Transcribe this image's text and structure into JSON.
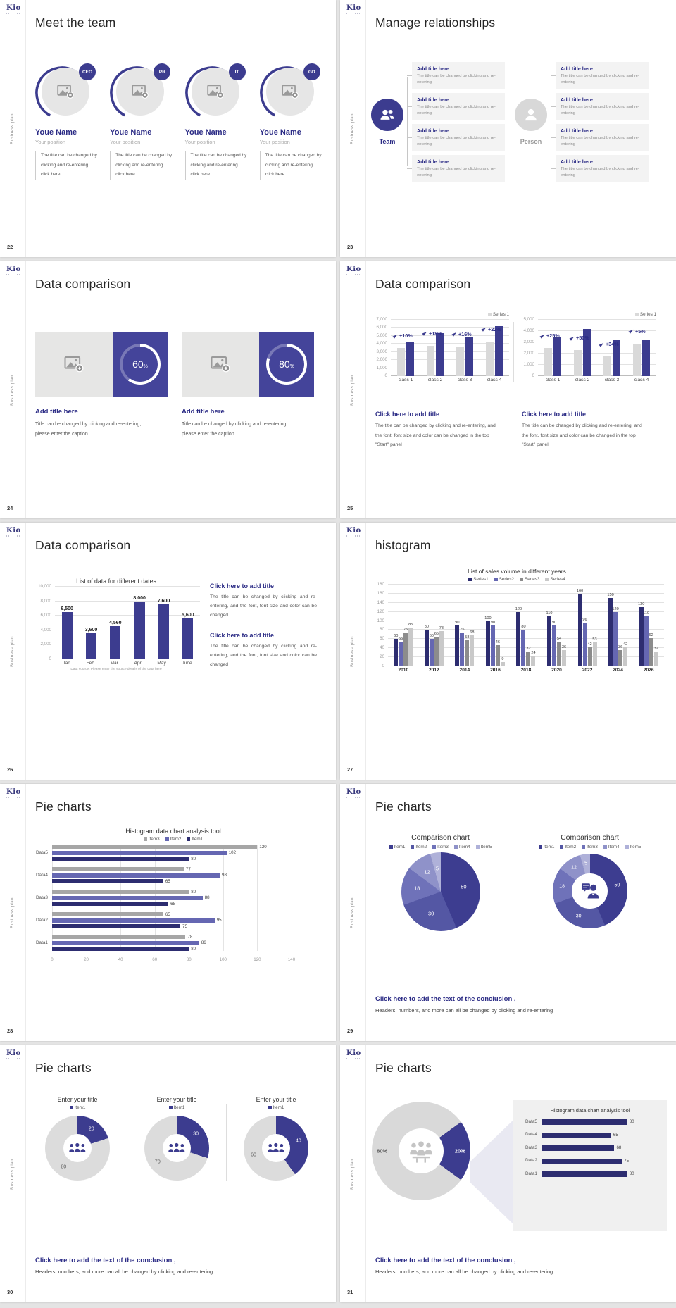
{
  "common": {
    "logo": "Kio",
    "side_label": "Business plan",
    "add_title": "Add title here",
    "relation_box_body": "The title can be changed by clicking and re-entering",
    "click_add_title": "Click here to add title",
    "conclusion_title": "Click here to add the text of the conclusion ,",
    "conclusion_body": "Headers, numbers, and more can all be changed by clicking and re-entering"
  },
  "colors": {
    "primary": "#3C3C8F",
    "navy": "#2D2D70",
    "mid_purple": "#6567B2",
    "gray_bar": "#D9D9D9",
    "gray_mid": "#A6A6A6",
    "dark_gray": "#8C8C8C",
    "light_gray": "#C9C9C9",
    "heading": "#2B2B8A"
  },
  "slides": {
    "s22": {
      "page": "22",
      "title": "Meet the team",
      "roles": [
        "CEO",
        "PR",
        "IT",
        "GD"
      ],
      "member_name": "Youe Name",
      "member_position": "Your position",
      "member_desc": "The title can be changed by clicking and re-entering click here"
    },
    "s23": {
      "page": "23",
      "title": "Manage relationships",
      "team_label": "Team",
      "person_label": "Person",
      "boxes_per_side": 4
    },
    "s24": {
      "page": "24",
      "title": "Data comparison",
      "percents": [
        "60",
        "80"
      ],
      "card_body": "Title can be changed by clicking and re-entering, please enter the caption"
    },
    "s25": {
      "page": "25",
      "title": "Data comparison",
      "block_body": "The title can be changed by clicking and re-entering, and the font, font size and color can be changed in the top \"Start\" panel"
    },
    "s26": {
      "page": "26",
      "title": "Data comparison",
      "block_body": "The title can be changed by clicking and re-entering, and the font, font size and color can be changed"
    },
    "s27": {
      "page": "27",
      "title": "histogram"
    },
    "s28": {
      "page": "28",
      "title": "Pie charts"
    },
    "s29": {
      "page": "29",
      "title": "Pie charts"
    },
    "s30": {
      "page": "30",
      "title": "Pie charts",
      "donut_title": "Enter your title"
    },
    "s31": {
      "page": "31",
      "title": "Pie charts"
    }
  },
  "chart_data": [
    {
      "id": "s25a",
      "type": "bar",
      "legend": [
        "Series 1"
      ],
      "legend_colors": [
        "gray_bar"
      ],
      "categories": [
        "class 1",
        "class 2",
        "class 3",
        "class 4"
      ],
      "series": [
        {
          "name": "Series 1",
          "color": "gray_bar",
          "values": [
            3500,
            3800,
            3700,
            4300
          ]
        },
        {
          "name": "Series 1 highlight",
          "color": "primary",
          "values": [
            4200,
            5300,
            4800,
            6200
          ]
        }
      ],
      "annotations": [
        "+10%",
        "+18%",
        "+16%",
        "+22%"
      ],
      "ylim": [
        0,
        7000
      ],
      "ystep": 1000
    },
    {
      "id": "s25b",
      "type": "bar",
      "legend": [
        "Series 1"
      ],
      "legend_colors": [
        "gray_bar"
      ],
      "categories": [
        "class 1",
        "class 2",
        "class 3",
        "class 4"
      ],
      "series": [
        {
          "name": "Series 1",
          "color": "gray_bar",
          "values": [
            2500,
            2300,
            1750,
            2900
          ]
        },
        {
          "name": "Series 1 highlight",
          "color": "primary",
          "values": [
            3500,
            4200,
            3200,
            3200
          ]
        }
      ],
      "annotations": [
        "+25%",
        "+50%",
        "+34%",
        "+5%"
      ],
      "ylim": [
        0,
        5000
      ],
      "ystep": 1000
    },
    {
      "id": "s26",
      "type": "bar",
      "title": "List of data for different dates",
      "categories": [
        "Jan",
        "Feb",
        "Mar",
        "Apr",
        "May",
        "June"
      ],
      "series": [
        {
          "name": "data",
          "color": "primary",
          "values": [
            6500,
            3600,
            4560,
            8000,
            7600,
            5600
          ]
        }
      ],
      "show_values": true,
      "bold_values": true,
      "ylim": [
        0,
        10000
      ],
      "ystep": 2000,
      "footnote": "Data source: Please enter the source details of the data here"
    },
    {
      "id": "s27",
      "type": "bar",
      "title": "List of sales volume in different years",
      "legend": [
        "Series1",
        "Series2",
        "Series3",
        "Series4"
      ],
      "legend_colors": [
        "navy",
        "mid_purple",
        "dark_gray",
        "light_gray"
      ],
      "categories": [
        "2010",
        "2012",
        "2014",
        "2016",
        "2018",
        "2020",
        "2022",
        "2024",
        "2026"
      ],
      "series": [
        {
          "name": "Series1",
          "color": "navy",
          "values": [
            60,
            80,
            90,
            100,
            120,
            110,
            160,
            150,
            130
          ]
        },
        {
          "name": "Series2",
          "color": "mid_purple",
          "values": [
            55,
            60,
            75,
            90,
            80,
            90,
            96,
            120,
            110
          ]
        },
        {
          "name": "Series3",
          "color": "dark_gray",
          "values": [
            75,
            65,
            58,
            46,
            32,
            54,
            42,
            36,
            62
          ]
        },
        {
          "name": "Series4",
          "color": "light_gray",
          "values": [
            85,
            78,
            68,
            9,
            24,
            36,
            53,
            42,
            32
          ]
        }
      ],
      "show_values": true,
      "bold_x": true,
      "ylim": [
        0,
        180
      ],
      "ystep": 20
    },
    {
      "id": "s28",
      "type": "hbar",
      "title": "Histogram data chart analysis tool",
      "legend": [
        "Item3",
        "Item2",
        "Item1"
      ],
      "legend_colors": [
        "gray_mid",
        "mid_purple",
        "navy"
      ],
      "categories": [
        "Data1",
        "Data2",
        "Data3",
        "Data4",
        "Data5"
      ],
      "series": [
        {
          "name": "Item3",
          "color": "gray_mid",
          "values": [
            78,
            65,
            80,
            77,
            120
          ]
        },
        {
          "name": "Item2",
          "color": "mid_purple",
          "values": [
            86,
            95,
            88,
            98,
            102
          ]
        },
        {
          "name": "Item1",
          "color": "navy",
          "values": [
            80,
            75,
            68,
            65,
            80
          ]
        }
      ],
      "xlim": [
        0,
        140
      ],
      "xstep": 20
    },
    {
      "id": "s29a",
      "type": "pie",
      "title": "Comparison chart",
      "legend": [
        "Item1",
        "Item2",
        "Item3",
        "Item4",
        "Item5"
      ],
      "values": [
        50,
        30,
        18,
        12,
        5
      ],
      "colors": [
        "#3D3D90",
        "#5457A4",
        "#6F72B9",
        "#8F92C9",
        "#AFB1D9"
      ]
    },
    {
      "id": "s29b",
      "type": "donut",
      "title": "Comparison chart",
      "legend": [
        "Item1",
        "Item2",
        "Item3",
        "Item4",
        "Item5"
      ],
      "values": [
        50,
        30,
        18,
        12,
        5
      ],
      "colors": [
        "#3D3D90",
        "#5457A4",
        "#6F72B9",
        "#8F92C9",
        "#AFB1D9"
      ],
      "center_icon": "chat-person-icon"
    },
    {
      "id": "s30a",
      "type": "donut",
      "title": "Enter your title",
      "legend": [
        "Item1"
      ],
      "legend_colors": [
        "navy"
      ],
      "values": [
        20,
        80
      ],
      "colors": [
        "#3C3C8F",
        "#DCDCDC"
      ],
      "label_colors": [
        "#fff",
        "#555"
      ],
      "center_icon": "group-icon"
    },
    {
      "id": "s30b",
      "type": "donut",
      "title": "Enter your title",
      "legend": [
        "Item1"
      ],
      "legend_colors": [
        "navy"
      ],
      "values": [
        30,
        70
      ],
      "colors": [
        "#3C3C8F",
        "#DCDCDC"
      ],
      "label_colors": [
        "#fff",
        "#555"
      ],
      "center_icon": "group-icon"
    },
    {
      "id": "s30c",
      "type": "donut",
      "title": "Enter your title",
      "legend": [
        "Item1"
      ],
      "legend_colors": [
        "navy"
      ],
      "values": [
        40,
        60
      ],
      "colors": [
        "#3C3C8F",
        "#DCDCDC"
      ],
      "label_colors": [
        "#fff",
        "#555"
      ],
      "center_icon": "group-icon"
    },
    {
      "id": "s31a",
      "type": "donut",
      "values": [
        20,
        80
      ],
      "labels": [
        "20%",
        "80%"
      ],
      "colors": [
        "#3C3C8F",
        "#D9D9D9"
      ],
      "label_colors": [
        "#fff",
        "#555"
      ],
      "start_deg": 54,
      "center_icon": "teamwork-icon"
    },
    {
      "id": "s31b",
      "type": "hbar",
      "title": "Histogram data chart analysis tool",
      "categories": [
        "Data1",
        "Data2",
        "Data3",
        "Data4",
        "Data5"
      ],
      "series": [
        {
          "name": "Item1",
          "color": "navy",
          "values": [
            80,
            75,
            68,
            65,
            80
          ]
        }
      ],
      "xlim": [
        0,
        92
      ],
      "no_axis": true
    }
  ]
}
